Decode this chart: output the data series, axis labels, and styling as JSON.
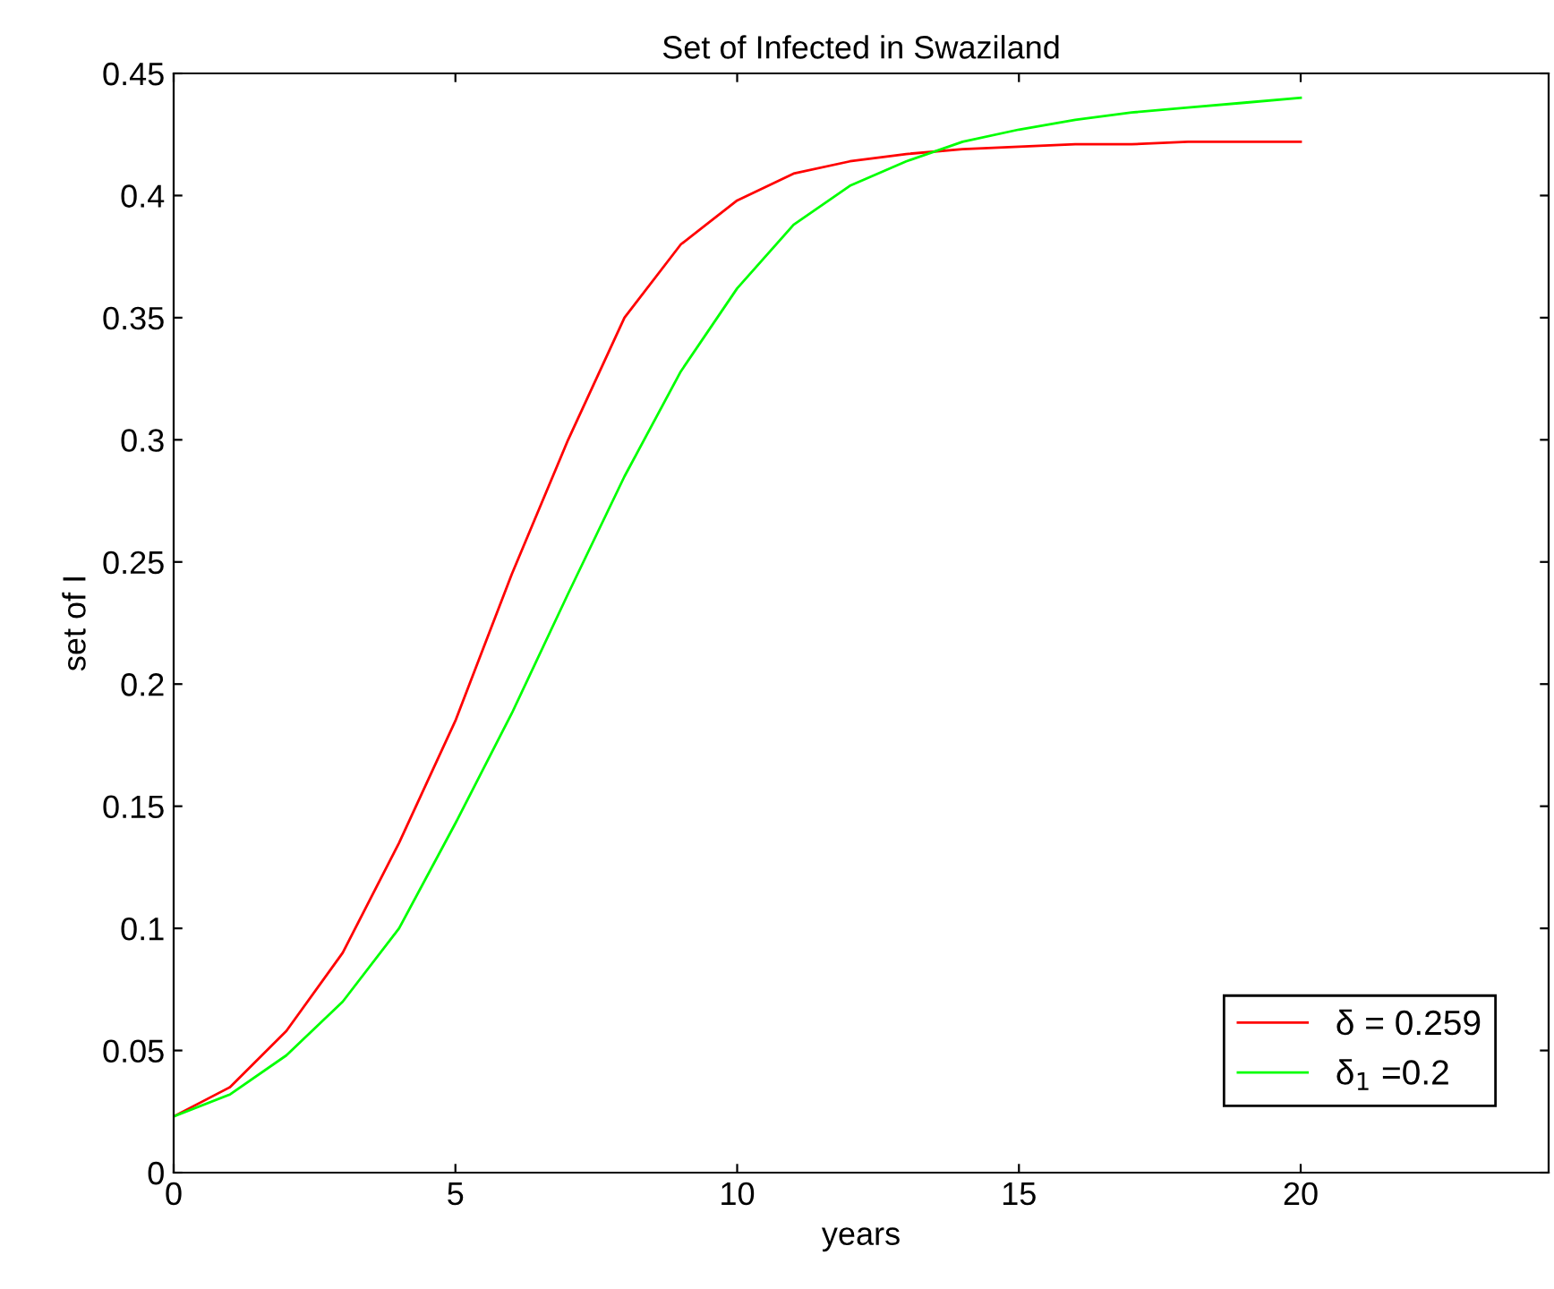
{
  "chart_data": {
    "type": "line",
    "title": "Set of Infected in Swaziland",
    "xlabel": "years",
    "ylabel": "set of I",
    "xlim": [
      0,
      24.4
    ],
    "xticks": [
      0,
      5,
      10,
      15,
      20
    ],
    "ylim": [
      0,
      0.45
    ],
    "yticks": [
      0,
      0.05,
      0.1,
      0.15,
      0.2,
      0.25,
      0.3,
      0.35,
      0.4,
      0.45
    ],
    "grid": false,
    "legend": "bottom right",
    "x": [
      0,
      1,
      2,
      3,
      4,
      5,
      6,
      7,
      8,
      9,
      10,
      11,
      12,
      13,
      14,
      15,
      16,
      17,
      18,
      19,
      20
    ],
    "series": [
      {
        "name": "δ = 0.259",
        "color": "#ff0000",
        "values": [
          0.023,
          0.035,
          0.058,
          0.09,
          0.135,
          0.185,
          0.245,
          0.3,
          0.35,
          0.38,
          0.398,
          0.409,
          0.414,
          0.417,
          0.419,
          0.42,
          0.421,
          0.421,
          0.422,
          0.422,
          0.422
        ]
      },
      {
        "name": "δ$_{1}$ =0.2",
        "color": "#00ff00",
        "values": [
          0.023,
          0.032,
          0.048,
          0.07,
          0.1,
          0.143,
          0.188,
          0.237,
          0.285,
          0.328,
          0.362,
          0.388,
          0.404,
          0.414,
          0.422,
          0.427,
          0.431,
          0.434,
          0.436,
          0.438,
          0.44
        ]
      }
    ]
  }
}
